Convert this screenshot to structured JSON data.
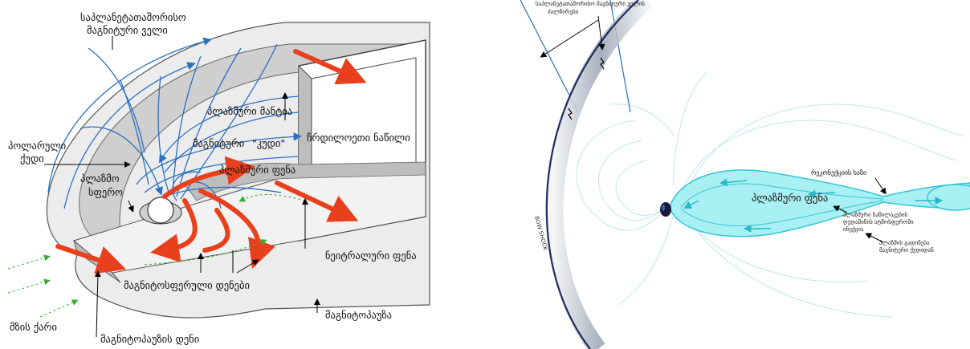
{
  "left_panel": {
    "labels": {
      "imf_line1": "საპლანეტათაშორისო",
      "imf_line2": "მაგნიტური ველი",
      "plasma_mantle": "პლაზმური მანტია",
      "polar_cusp_line1": "პოლარული",
      "polar_cusp_line2": "ქუდი",
      "tail_lobe_prefix": "მაგნიტური",
      "tail_lobe_word": "\"კუდი\"",
      "tail_lobe_suffix": "ჩრდილოეთი ნაწილი",
      "plasmasphere_line1": "პლაზმო",
      "plasmasphere_line2": "სფერო",
      "plasma_sheet": "პლაზმური ფენა",
      "neutral_sheet": "ნეიტრალური ფენა",
      "magnetospheric_currents": "მაგნიტოსფერული დენები",
      "magnetopause": "მაგნიტოპაუზა",
      "solar_wind": "მზის ქარი",
      "magnetopause_current": "მაგნიტოპაუზის დენი"
    }
  },
  "right_panel": {
    "labels": {
      "top_line1": "საპლანეტათაშორისო მაგნიტური ველის",
      "top_line2": "ძალწირები",
      "reconnection_line": "რეკონექციის ხაზი",
      "plasma_sheet": "პლაზმური ფენა",
      "plasma_flow_line1": "პლაზმური ნაწილაკების",
      "plasma_flow_line2": "დედამიწის ატმოსფეროში",
      "plasma_flow_line3": "ინექცია",
      "plasmoid_line1": "პლაზმის გადინება",
      "plasmoid_line2": "მაგნიტური ქუდიდან",
      "bow_shock": "BOW SHOCK"
    }
  },
  "colors": {
    "field_line": "#2a6fc0",
    "current_arrow": "#e8401c",
    "green_flow": "#3aaa3a",
    "surface_gray": "#d9d9d9",
    "cyan_plasma": "#5fe0ea",
    "bow_shock_dark": "#1c2c5c"
  }
}
